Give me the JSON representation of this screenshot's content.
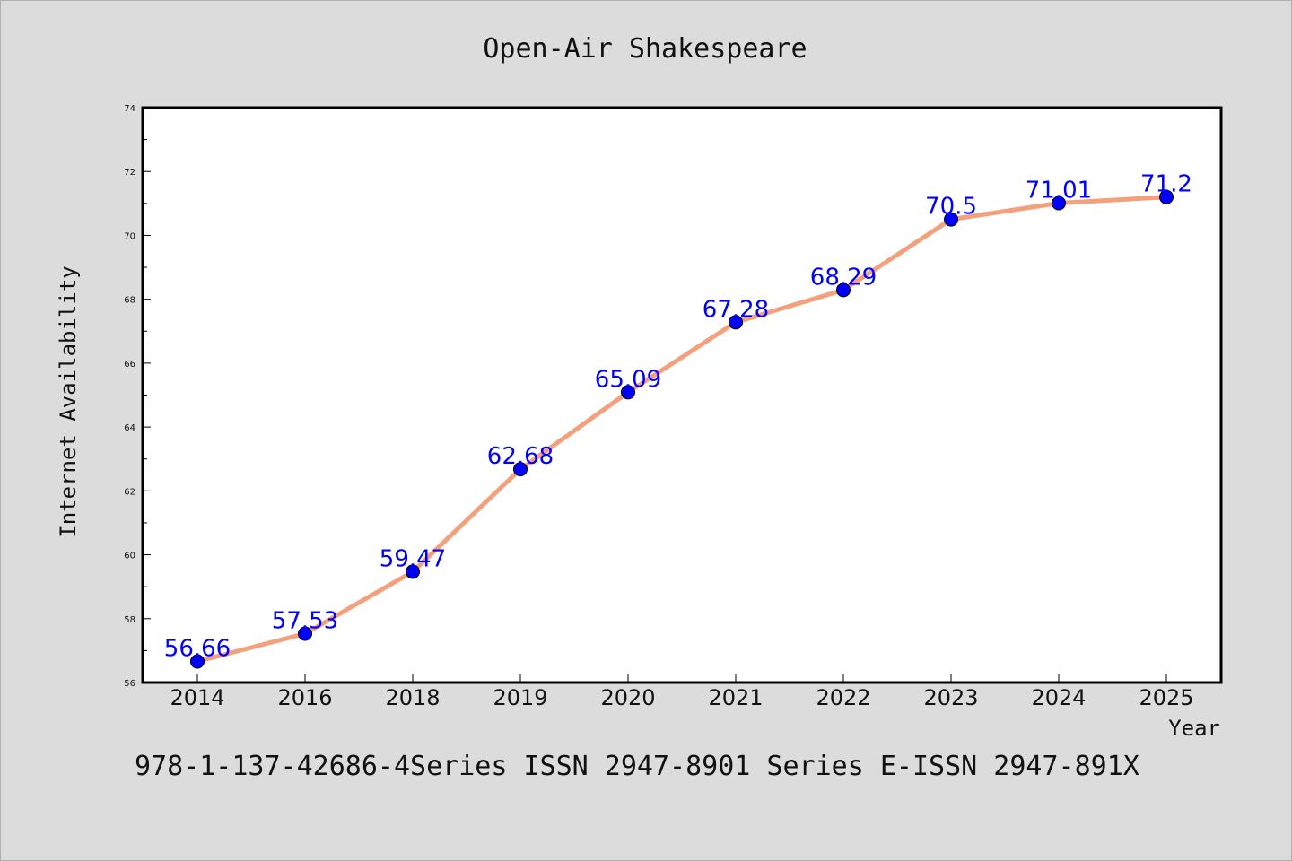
{
  "chart_data": {
    "type": "line",
    "title": "Open-Air Shakespeare",
    "xlabel": "Year",
    "ylabel": "Internet Availability",
    "categories": [
      "2014",
      "2016",
      "2018",
      "2019",
      "2020",
      "2021",
      "2022",
      "2023",
      "2024",
      "2025"
    ],
    "series": [
      {
        "values": [
          56.66,
          57.53,
          59.47,
          62.68,
          65.09,
          67.28,
          68.29,
          70.5,
          71.01,
          71.2
        ],
        "labels": [
          "56.66",
          "57.53",
          "59.47",
          "62.68",
          "65.09",
          "67.28",
          "68.29",
          "70.5",
          "71.01",
          "71.2"
        ],
        "line_color": "#f4a07c",
        "marker_color": "#0000ff"
      }
    ],
    "ylim": [
      56,
      74
    ],
    "yticks": [
      56,
      58,
      60,
      62,
      64,
      66,
      68,
      70,
      72,
      74
    ],
    "grid": false,
    "legend": "none"
  },
  "footer": {
    "text": "978-1-137-42686-4Series ISSN 2947-8901 Series E-ISSN 2947-891X"
  }
}
